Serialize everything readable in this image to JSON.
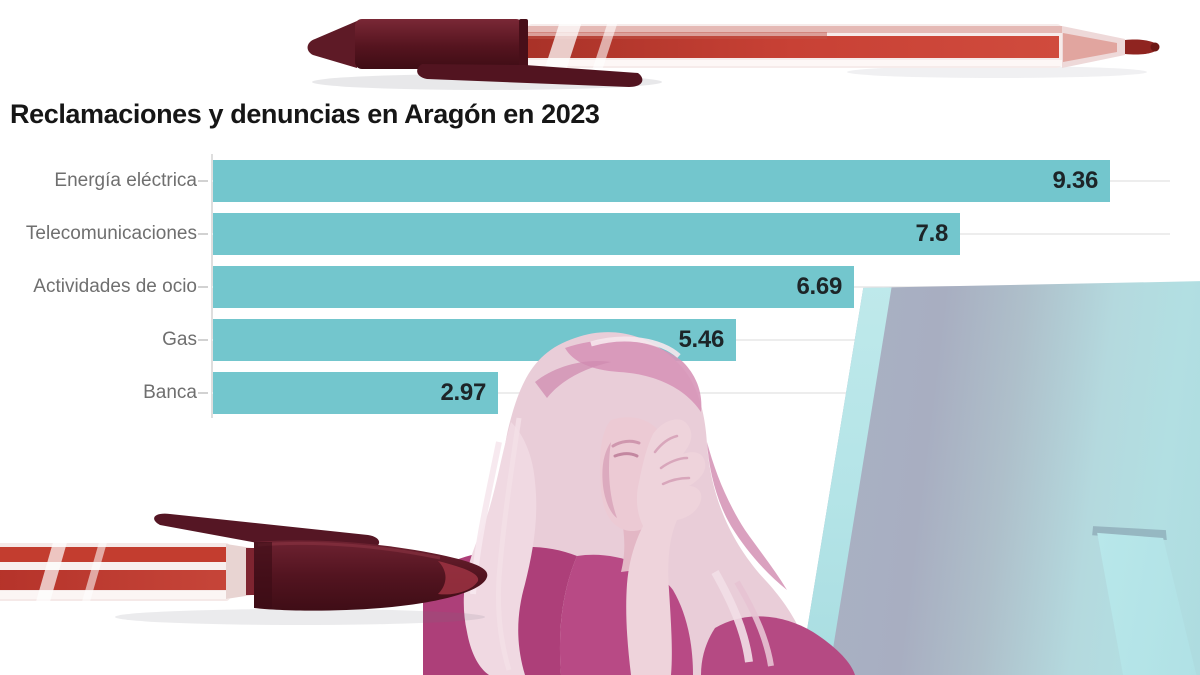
{
  "title": "Reclamaciones y denuncias en Aragón en 2023",
  "chart_data": {
    "type": "bar",
    "orientation": "horizontal",
    "title": "Reclamaciones y denuncias en Aragón en 2023",
    "categories": [
      "Energía eléctrica",
      "Telecomunicaciones",
      "Actividades de ocio",
      "Gas",
      "Banca"
    ],
    "values": [
      9.36,
      7.8,
      6.69,
      5.46,
      2.97
    ],
    "value_labels": [
      "9.36",
      "7.8",
      "6.69",
      "5.46",
      "2.97"
    ],
    "xlabel": "",
    "ylabel": "",
    "xlim": [
      0,
      10
    ],
    "grid": true,
    "legend": false,
    "bar_color": "#73c6cd",
    "gridline_color": "#ededed",
    "category_label_color": "#6f6f6f",
    "value_label_color": "#1d2528"
  },
  "decorations": {
    "pen_top": {
      "name": "red-ballpoint-pen",
      "cap_color": "#571722",
      "ink_color": "#c23d30"
    },
    "pen_bottom": {
      "name": "red-ballpoint-pen",
      "cap_color": "#571722",
      "ink_color": "#c23d30"
    },
    "woman": {
      "name": "stressed-woman-pink-duotone",
      "duotone_color": "#b0417b"
    },
    "monitor": {
      "name": "computer-monitor-back-teal-duotone",
      "tint_color": "#b5e0e3"
    }
  }
}
